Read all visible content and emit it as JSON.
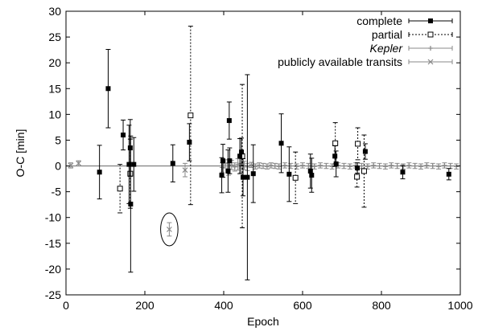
{
  "chart_data": {
    "type": "scatter",
    "title": "",
    "xlabel": "Epoch",
    "ylabel": "O-C  [min]",
    "xlim": [
      0,
      1000
    ],
    "ylim": [
      -25,
      30
    ],
    "xticks": [
      "0",
      "200",
      "400",
      "600",
      "800",
      "1000"
    ],
    "yticks": [
      "-25",
      "-20",
      "-15",
      "-10",
      "-5",
      "0",
      "5",
      "10",
      "15",
      "20",
      "25",
      "30"
    ],
    "legend_position": "top-right",
    "zero_line": true,
    "series": [
      {
        "name": "complete",
        "marker": "filled-square",
        "line_style": "solid",
        "color": "#000000",
        "points": [
          {
            "x": 85,
            "y": -1.2,
            "err": 5.2
          },
          {
            "x": 107,
            "y": 15.0,
            "err": 7.6
          },
          {
            "x": 145,
            "y": 6.0,
            "err": 2.9
          },
          {
            "x": 160,
            "y": 0.3,
            "err": 7.6
          },
          {
            "x": 163,
            "y": 3.5,
            "err": 5.5
          },
          {
            "x": 164,
            "y": -7.4,
            "err": 13.2
          },
          {
            "x": 172,
            "y": 0.3,
            "err": 5.2
          },
          {
            "x": 271,
            "y": 0.5,
            "err": 3.6
          },
          {
            "x": 313,
            "y": 4.6,
            "err": 3.6
          },
          {
            "x": 395,
            "y": -1.8,
            "err": 3.4
          },
          {
            "x": 398,
            "y": 1.0,
            "err": 3.2
          },
          {
            "x": 411,
            "y": -1.0,
            "err": 4.1
          },
          {
            "x": 414,
            "y": 8.8,
            "err": 3.6
          },
          {
            "x": 415,
            "y": 1.0,
            "err": 2.5
          },
          {
            "x": 441,
            "y": 1.9,
            "err": 3.4
          },
          {
            "x": 445,
            "y": 2.7,
            "err": 2.7
          },
          {
            "x": 449,
            "y": -2.2,
            "err": 3.6
          },
          {
            "x": 460,
            "y": -2.2,
            "err": 19.9
          },
          {
            "x": 475,
            "y": -1.5,
            "err": 5.6
          },
          {
            "x": 546,
            "y": 4.4,
            "err": 5.7
          },
          {
            "x": 566,
            "y": -1.6,
            "err": 5.3
          },
          {
            "x": 620,
            "y": -1.0,
            "err": 3.3
          },
          {
            "x": 623,
            "y": -1.8,
            "err": 3.3
          },
          {
            "x": 682,
            "y": 1.9,
            "err": 2.0
          },
          {
            "x": 685,
            "y": 0.4,
            "err": 2.5
          },
          {
            "x": 739,
            "y": -0.4,
            "err": 1.0
          },
          {
            "x": 759,
            "y": 2.8,
            "err": 1.5
          },
          {
            "x": 854,
            "y": -1.2,
            "err": 1.3
          },
          {
            "x": 971,
            "y": -1.6,
            "err": 1.1
          }
        ]
      },
      {
        "name": "partial",
        "marker": "open-square",
        "line_style": "dotted",
        "color": "#000000",
        "points": [
          {
            "x": 137,
            "y": -4.4,
            "err": 4.7
          },
          {
            "x": 163,
            "y": -1.5,
            "err": 6.7
          },
          {
            "x": 316,
            "y": 9.8,
            "err": 17.3
          },
          {
            "x": 447,
            "y": 1.9,
            "err": 13.9
          },
          {
            "x": 582,
            "y": -2.3,
            "err": 5.0
          },
          {
            "x": 683,
            "y": 4.4,
            "err": 4.0
          },
          {
            "x": 738,
            "y": -2.1,
            "err": 2.0
          },
          {
            "x": 740,
            "y": 4.3,
            "err": 3.1
          },
          {
            "x": 756,
            "y": -1.0,
            "err": 7.0
          }
        ]
      },
      {
        "name": "Kepler",
        "marker": "plus",
        "line_style": "solid",
        "color": "#888888",
        "points": [
          {
            "x": 396,
            "y": -0.3,
            "err": 0.9
          },
          {
            "x": 404,
            "y": 0.4,
            "err": 0.8
          },
          {
            "x": 412,
            "y": -0.6,
            "err": 1.2
          },
          {
            "x": 420,
            "y": 0.2,
            "err": 0.9
          },
          {
            "x": 428,
            "y": -0.2,
            "err": 0.8
          },
          {
            "x": 436,
            "y": 0.3,
            "err": 1.1
          },
          {
            "x": 444,
            "y": -0.4,
            "err": 0.9
          },
          {
            "x": 452,
            "y": 0.1,
            "err": 0.8
          },
          {
            "x": 460,
            "y": -0.2,
            "err": 0.7
          },
          {
            "x": 470,
            "y": 0.2,
            "err": 0.5
          },
          {
            "x": 480,
            "y": -0.1,
            "err": 0.5
          },
          {
            "x": 490,
            "y": 0.1,
            "err": 0.5
          },
          {
            "x": 500,
            "y": 0.0,
            "err": 0.5
          },
          {
            "x": 510,
            "y": -0.1,
            "err": 0.5
          },
          {
            "x": 520,
            "y": 0.1,
            "err": 0.5
          },
          {
            "x": 530,
            "y": 0.0,
            "err": 0.5
          },
          {
            "x": 540,
            "y": -0.1,
            "err": 0.5
          },
          {
            "x": 555,
            "y": 0.1,
            "err": 0.5
          },
          {
            "x": 570,
            "y": 0.0,
            "err": 0.5
          },
          {
            "x": 585,
            "y": -0.1,
            "err": 0.5
          },
          {
            "x": 600,
            "y": 0.1,
            "err": 0.5
          },
          {
            "x": 615,
            "y": 0.0,
            "err": 0.5
          },
          {
            "x": 630,
            "y": -0.1,
            "err": 0.5
          },
          {
            "x": 645,
            "y": 0.1,
            "err": 0.5
          },
          {
            "x": 660,
            "y": 0.0,
            "err": 0.5
          },
          {
            "x": 675,
            "y": -0.1,
            "err": 0.5
          },
          {
            "x": 690,
            "y": 0.1,
            "err": 0.5
          },
          {
            "x": 705,
            "y": 0.0,
            "err": 0.5
          },
          {
            "x": 720,
            "y": -0.1,
            "err": 0.5
          },
          {
            "x": 735,
            "y": 0.1,
            "err": 0.5
          },
          {
            "x": 750,
            "y": 0.0,
            "err": 0.5
          },
          {
            "x": 765,
            "y": -0.1,
            "err": 0.5
          },
          {
            "x": 780,
            "y": 0.1,
            "err": 0.5
          },
          {
            "x": 795,
            "y": 0.0,
            "err": 0.5
          },
          {
            "x": 810,
            "y": -0.1,
            "err": 0.5
          },
          {
            "x": 825,
            "y": 0.1,
            "err": 0.5
          },
          {
            "x": 840,
            "y": 0.0,
            "err": 0.5
          },
          {
            "x": 855,
            "y": -0.1,
            "err": 0.5
          },
          {
            "x": 870,
            "y": 0.1,
            "err": 0.5
          },
          {
            "x": 885,
            "y": 0.0,
            "err": 0.5
          },
          {
            "x": 900,
            "y": -0.1,
            "err": 0.5
          },
          {
            "x": 915,
            "y": 0.1,
            "err": 0.5
          },
          {
            "x": 930,
            "y": 0.0,
            "err": 0.5
          },
          {
            "x": 945,
            "y": -0.1,
            "err": 0.5
          },
          {
            "x": 960,
            "y": 0.1,
            "err": 0.5
          },
          {
            "x": 975,
            "y": 0.0,
            "err": 0.5
          },
          {
            "x": 990,
            "y": -0.1,
            "err": 0.5
          }
        ]
      },
      {
        "name": "publicly available transits",
        "marker": "cross",
        "line_style": "solid",
        "color": "#888888",
        "points": [
          {
            "x": 12,
            "y": 0.1,
            "err": 0.5
          },
          {
            "x": 32,
            "y": 0.5,
            "err": 0.5
          },
          {
            "x": 262,
            "y": -12.3,
            "err": 1.3
          },
          {
            "x": 302,
            "y": -0.8,
            "err": 1.3
          }
        ]
      }
    ],
    "annotations": [
      {
        "type": "circle",
        "x": 262,
        "y": -12.3,
        "radius_x": 22,
        "radius_y": 3.2
      }
    ]
  }
}
